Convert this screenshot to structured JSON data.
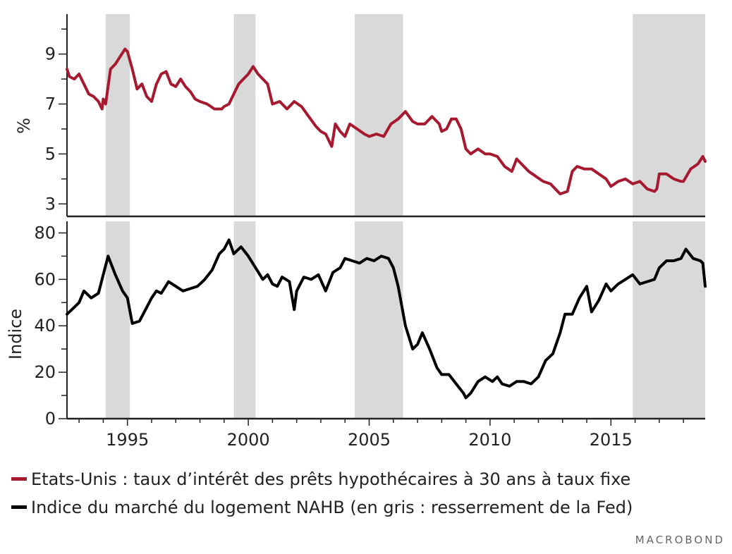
{
  "chart_data": [
    {
      "type": "line",
      "ylabel": "%",
      "ylim": [
        2.5,
        10.6
      ],
      "yticks": [
        3,
        5,
        7,
        9
      ],
      "xlim": [
        1992.5,
        2018.9
      ],
      "xticks": [
        1995,
        2000,
        2005,
        2010,
        2015
      ],
      "shaded_periods": [
        [
          1994.1,
          1995.1
        ],
        [
          1999.4,
          2000.3
        ],
        [
          2004.4,
          2006.4
        ],
        [
          2015.9,
          2018.9
        ]
      ],
      "series": [
        {
          "name": "Etats-Unis : taux d’intérêt des prêts hypothécaires à 30 ans à taux fixe",
          "color": "#a6192e",
          "x": [
            1992.5,
            1992.6,
            1992.8,
            1993.0,
            1993.2,
            1993.4,
            1993.6,
            1993.8,
            1993.95,
            1994.0,
            1994.1,
            1994.3,
            1994.5,
            1994.7,
            1994.9,
            1995.0,
            1995.2,
            1995.4,
            1995.6,
            1995.8,
            1996.0,
            1996.2,
            1996.4,
            1996.6,
            1996.8,
            1997.0,
            1997.2,
            1997.4,
            1997.6,
            1997.8,
            1998.0,
            1998.3,
            1998.6,
            1998.9,
            1999.0,
            1999.2,
            1999.4,
            1999.6,
            1999.8,
            2000.0,
            2000.2,
            2000.4,
            2000.6,
            2000.8,
            2001.0,
            2001.3,
            2001.6,
            2001.9,
            2002.2,
            2002.5,
            2002.8,
            2003.0,
            2003.2,
            2003.45,
            2003.6,
            2003.8,
            2004.0,
            2004.2,
            2004.5,
            2004.8,
            2005.0,
            2005.3,
            2005.6,
            2005.9,
            2006.2,
            2006.5,
            2006.8,
            2007.0,
            2007.3,
            2007.6,
            2007.9,
            2008.0,
            2008.2,
            2008.4,
            2008.6,
            2008.8,
            2009.0,
            2009.2,
            2009.5,
            2009.8,
            2010.0,
            2010.3,
            2010.6,
            2010.9,
            2011.1,
            2011.3,
            2011.6,
            2011.9,
            2012.2,
            2012.5,
            2012.8,
            2012.9,
            2013.2,
            2013.4,
            2013.6,
            2013.9,
            2014.2,
            2014.5,
            2014.8,
            2015.0,
            2015.3,
            2015.6,
            2015.9,
            2016.2,
            2016.5,
            2016.8,
            2016.9,
            2017.0,
            2017.3,
            2017.6,
            2017.9,
            2018.0,
            2018.3,
            2018.6,
            2018.8,
            2018.9
          ],
          "y": [
            8.4,
            8.1,
            8.0,
            8.2,
            7.8,
            7.4,
            7.3,
            7.1,
            6.8,
            7.2,
            7.0,
            8.4,
            8.6,
            8.9,
            9.2,
            9.1,
            8.4,
            7.6,
            7.8,
            7.3,
            7.1,
            7.8,
            8.2,
            8.3,
            7.8,
            7.7,
            8.0,
            7.7,
            7.5,
            7.2,
            7.1,
            7.0,
            6.8,
            6.8,
            6.9,
            7.0,
            7.4,
            7.8,
            8.0,
            8.2,
            8.5,
            8.2,
            8.0,
            7.8,
            7.0,
            7.1,
            6.8,
            7.1,
            6.9,
            6.5,
            6.1,
            5.9,
            5.8,
            5.3,
            6.2,
            5.9,
            5.7,
            6.2,
            6.0,
            5.8,
            5.7,
            5.8,
            5.7,
            6.2,
            6.4,
            6.7,
            6.3,
            6.2,
            6.2,
            6.5,
            6.2,
            5.9,
            6.0,
            6.4,
            6.4,
            6.0,
            5.2,
            5.0,
            5.2,
            5.0,
            5.0,
            4.9,
            4.5,
            4.3,
            4.8,
            4.6,
            4.3,
            4.1,
            3.9,
            3.8,
            3.5,
            3.4,
            3.5,
            4.3,
            4.5,
            4.4,
            4.4,
            4.2,
            4.0,
            3.7,
            3.9,
            4.0,
            3.8,
            3.9,
            3.6,
            3.5,
            3.6,
            4.2,
            4.2,
            4.0,
            3.9,
            3.9,
            4.4,
            4.6,
            4.9,
            4.7
          ]
        }
      ]
    },
    {
      "type": "line",
      "ylabel": "Indice",
      "ylim": [
        0,
        85
      ],
      "yticks": [
        0,
        20,
        40,
        60,
        80
      ],
      "xlim": [
        1992.5,
        2018.9
      ],
      "xticks": [
        1995,
        2000,
        2005,
        2010,
        2015
      ],
      "shaded_periods": [
        [
          1994.1,
          1995.1
        ],
        [
          1999.4,
          2000.3
        ],
        [
          2004.4,
          2006.4
        ],
        [
          2015.9,
          2018.9
        ]
      ],
      "series": [
        {
          "name": "Indice du marché du logement NAHB (en gris : resserrement de la Fed)",
          "color": "#000000",
          "x": [
            1992.5,
            1992.8,
            1993.0,
            1993.2,
            1993.5,
            1993.8,
            1994.0,
            1994.2,
            1994.5,
            1994.8,
            1995.0,
            1995.2,
            1995.5,
            1995.8,
            1996.0,
            1996.2,
            1996.4,
            1996.7,
            1997.0,
            1997.3,
            1997.6,
            1997.9,
            1998.2,
            1998.5,
            1998.8,
            1999.0,
            1999.2,
            1999.4,
            1999.7,
            2000.0,
            2000.3,
            2000.6,
            2000.8,
            2001.0,
            2001.2,
            2001.4,
            2001.7,
            2001.9,
            2002.0,
            2002.3,
            2002.6,
            2002.9,
            2003.2,
            2003.5,
            2003.8,
            2004.0,
            2004.3,
            2004.6,
            2004.9,
            2005.2,
            2005.5,
            2005.8,
            2006.0,
            2006.2,
            2006.5,
            2006.8,
            2007.0,
            2007.2,
            2007.5,
            2007.8,
            2008.0,
            2008.3,
            2008.6,
            2008.9,
            2009.0,
            2009.2,
            2009.5,
            2009.8,
            2010.1,
            2010.3,
            2010.5,
            2010.8,
            2011.1,
            2011.4,
            2011.7,
            2012.0,
            2012.3,
            2012.6,
            2012.9,
            2013.1,
            2013.4,
            2013.7,
            2014.0,
            2014.2,
            2014.5,
            2014.8,
            2015.0,
            2015.3,
            2015.6,
            2015.9,
            2016.2,
            2016.5,
            2016.8,
            2017.0,
            2017.3,
            2017.6,
            2017.9,
            2018.1,
            2018.4,
            2018.7,
            2018.8,
            2018.9
          ],
          "y": [
            45,
            48,
            50,
            55,
            52,
            54,
            62,
            70,
            62,
            55,
            52,
            41,
            42,
            48,
            52,
            55,
            54,
            59,
            57,
            55,
            56,
            57,
            60,
            64,
            71,
            73,
            77,
            71,
            74,
            70,
            65,
            60,
            62,
            58,
            57,
            61,
            59,
            47,
            55,
            61,
            60,
            62,
            55,
            63,
            65,
            69,
            68,
            67,
            69,
            68,
            70,
            69,
            65,
            57,
            40,
            30,
            32,
            37,
            30,
            22,
            19,
            19,
            15,
            11,
            9,
            11,
            16,
            18,
            16,
            18,
            15,
            14,
            16,
            16,
            15,
            18,
            25,
            28,
            37,
            45,
            45,
            52,
            57,
            46,
            51,
            58,
            55,
            58,
            60,
            62,
            58,
            59,
            60,
            65,
            68,
            68,
            69,
            73,
            69,
            68,
            67,
            57
          ]
        }
      ]
    }
  ],
  "legend": {
    "item1": "Etats-Unis : taux d’intérêt des prêts hypothécaires à 30 ans à taux fixe",
    "item2": "Indice du marché du logement NAHB (en gris : resserrement de la Fed)",
    "color1": "#a6192e",
    "color2": "#000000"
  },
  "brand": "MACROBOND",
  "shade_color": "#d9d9d9"
}
